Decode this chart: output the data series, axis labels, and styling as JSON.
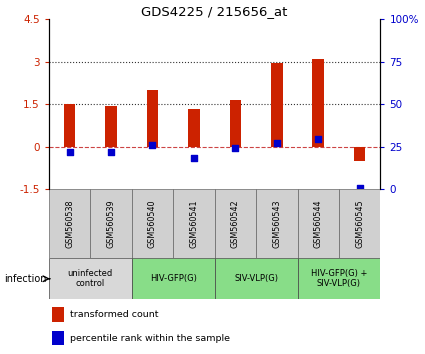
{
  "title": "GDS4225 / 215656_at",
  "samples": [
    "GSM560538",
    "GSM560539",
    "GSM560540",
    "GSM560541",
    "GSM560542",
    "GSM560543",
    "GSM560544",
    "GSM560545"
  ],
  "transformed_count": [
    1.5,
    1.45,
    2.0,
    1.35,
    1.65,
    2.95,
    3.1,
    -0.5
  ],
  "percentile_offset": [
    -0.18,
    -0.18,
    0.08,
    -0.38,
    -0.05,
    0.15,
    0.28,
    -1.45
  ],
  "red_color": "#cc2200",
  "blue_color": "#0000cc",
  "ylim_left": [
    -1.5,
    4.5
  ],
  "ylim_right": [
    0,
    100
  ],
  "yticks_left": [
    -1.5,
    0,
    1.5,
    3.0,
    4.5
  ],
  "yticks_right": [
    0,
    25,
    50,
    75,
    100
  ],
  "hline0_color": "#cc4444",
  "hline_dot_color": "#333333",
  "groups": [
    {
      "label": "uninfected\ncontrol",
      "start": 0,
      "end": 2,
      "color": "#d8d8d8"
    },
    {
      "label": "HIV-GFP(G)",
      "start": 2,
      "end": 4,
      "color": "#88dd88"
    },
    {
      "label": "SIV-VLP(G)",
      "start": 4,
      "end": 6,
      "color": "#88dd88"
    },
    {
      "label": "HIV-GFP(G) +\nSIV-VLP(G)",
      "start": 6,
      "end": 8,
      "color": "#88dd88"
    }
  ],
  "infection_label": "infection",
  "legend_red": "transformed count",
  "legend_blue": "percentile rank within the sample",
  "bar_width": 0.28
}
